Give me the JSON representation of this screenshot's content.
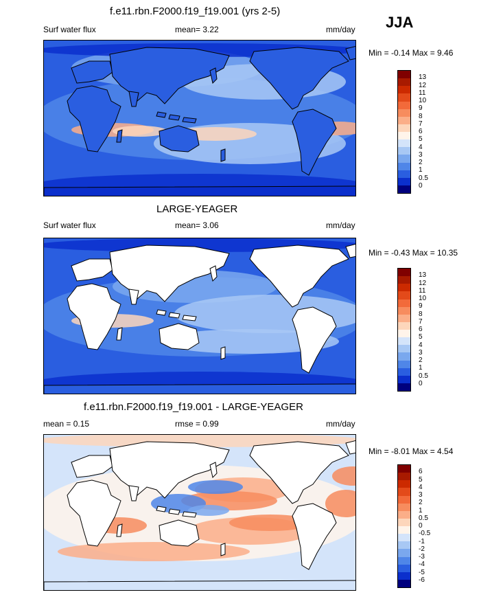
{
  "season": "JJA",
  "panels": [
    {
      "title": "f.e11.rbn.F2000.f19_f19.001 (yrs 2-5)",
      "left_label": "Surf water flux",
      "mid_label": "mean=   3.22",
      "units": "mm/day",
      "minmax": "Min =  -0.14 Max =   9.46",
      "mask_land": false,
      "colorbar": {
        "ticks": [
          "13",
          "12",
          "11",
          "10",
          "9",
          "8",
          "7",
          "6",
          "5",
          "4",
          "3",
          "2",
          "1",
          "0.5",
          "0"
        ],
        "colors": [
          "#800000",
          "#a81a00",
          "#cc2a00",
          "#e34a1a",
          "#f26a3a",
          "#f78c5e",
          "#fbae88",
          "#fdd6bb",
          "#fff4ea",
          "#d4e4fa",
          "#a8c8f4",
          "#7aa8ee",
          "#4f86e8",
          "#2a5ee0",
          "#0b2fcc",
          "#00007e"
        ]
      }
    },
    {
      "title": "LARGE-YEAGER",
      "left_label": "Surf water flux",
      "mid_label": "mean=   3.06",
      "units": "mm/day",
      "minmax": "Min =  -0.43 Max =  10.35",
      "mask_land": true,
      "colorbar": {
        "ticks": [
          "13",
          "12",
          "11",
          "10",
          "9",
          "8",
          "7",
          "6",
          "5",
          "4",
          "3",
          "2",
          "1",
          "0.5",
          "0"
        ],
        "colors": [
          "#800000",
          "#a81a00",
          "#cc2a00",
          "#e34a1a",
          "#f26a3a",
          "#f78c5e",
          "#fbae88",
          "#fdd6bb",
          "#fff4ea",
          "#d4e4fa",
          "#a8c8f4",
          "#7aa8ee",
          "#4f86e8",
          "#2a5ee0",
          "#0b2fcc",
          "#00007e"
        ]
      }
    },
    {
      "title": "f.e11.rbn.F2000.f19_f19.001 - LARGE-YEAGER",
      "left_label": "mean =   0.15",
      "mid_label": "rmse =   0.99",
      "units": "mm/day",
      "minmax": "Min =  -8.01 Max =   4.54",
      "mask_land": true,
      "colorbar": {
        "ticks": [
          "6",
          "5",
          "4",
          "3",
          "2",
          "1",
          "0.5",
          "0",
          "-0.5",
          "-1",
          "-2",
          "-3",
          "-4",
          "-5",
          "-6"
        ],
        "colors": [
          "#800000",
          "#a81a00",
          "#cc2a00",
          "#e34a1a",
          "#f26a3a",
          "#f78c5e",
          "#fbae88",
          "#fdd6bb",
          "#fff4ea",
          "#d4e4fa",
          "#a8c8f4",
          "#7aa8ee",
          "#4f86e8",
          "#2a5ee0",
          "#0b2fcc",
          "#00007e"
        ]
      }
    }
  ]
}
